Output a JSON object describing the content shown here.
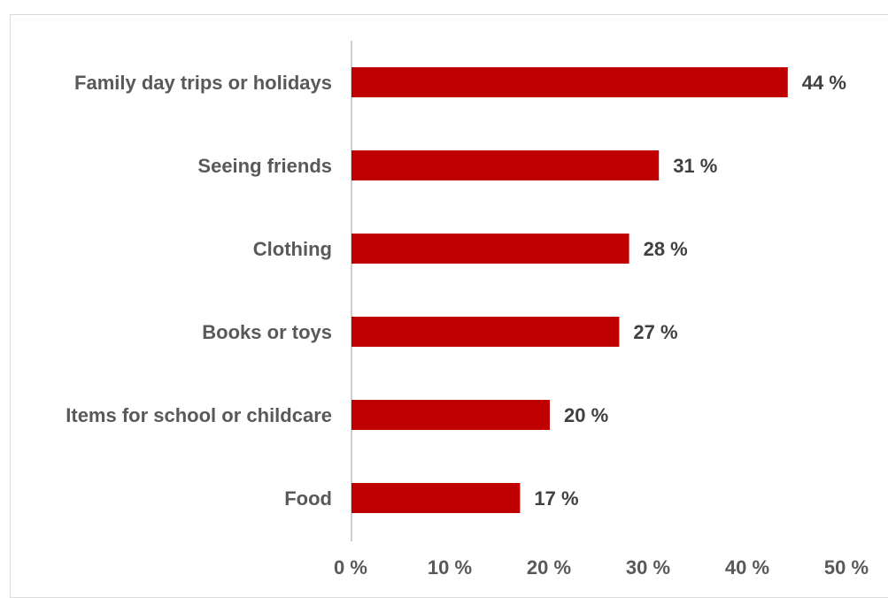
{
  "chart_data": {
    "type": "bar",
    "orientation": "horizontal",
    "title": "",
    "xlabel": "",
    "ylabel": "",
    "categories": [
      "Family day trips or holidays",
      "Seeing friends",
      "Clothing",
      "Books or toys",
      "Items for school or childcare",
      "Food"
    ],
    "values": [
      44,
      31,
      28,
      27,
      20,
      17
    ],
    "value_labels": [
      "44 %",
      "31 %",
      "28 %",
      "27 %",
      "20 %",
      "17 %"
    ],
    "xlim": [
      0,
      50
    ],
    "x_ticks": [
      0,
      10,
      20,
      30,
      40,
      50
    ],
    "x_tick_labels": [
      "0 %",
      "10 %",
      "20 %",
      "30 %",
      "40 %",
      "50 %"
    ],
    "grid": false,
    "legend": "none",
    "colors": {
      "bar": "#c00000",
      "axis_line": "#bfbfbf",
      "category_text": "#595959",
      "value_text": "#404040",
      "frame": "#d9d9d9"
    }
  }
}
